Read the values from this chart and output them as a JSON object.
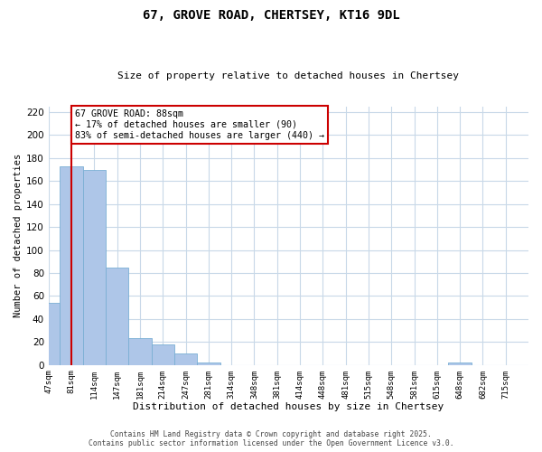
{
  "title": "67, GROVE ROAD, CHERTSEY, KT16 9DL",
  "subtitle": "Size of property relative to detached houses in Chertsey",
  "xlabel": "Distribution of detached houses by size in Chertsey",
  "ylabel": "Number of detached properties",
  "bar_heights": [
    54,
    173,
    170,
    85,
    23,
    18,
    10,
    2,
    0,
    0,
    0,
    0,
    0,
    0,
    0,
    0,
    0,
    0,
    2,
    0,
    0
  ],
  "bar_color": "#aec6e8",
  "bar_edge_color": "#7aafd4",
  "property_bin_index": 1,
  "property_line_color": "#cc0000",
  "annotation_box_color": "#cc0000",
  "annotation_text": "67 GROVE ROAD: 88sqm\n← 17% of detached houses are smaller (90)\n83% of semi-detached houses are larger (440) →",
  "ylim": [
    0,
    225
  ],
  "yticks": [
    0,
    20,
    40,
    60,
    80,
    100,
    120,
    140,
    160,
    180,
    200,
    220
  ],
  "tick_labels": [
    "47sqm",
    "81sqm",
    "114sqm",
    "147sqm",
    "181sqm",
    "214sqm",
    "247sqm",
    "281sqm",
    "314sqm",
    "348sqm",
    "381sqm",
    "414sqm",
    "448sqm",
    "481sqm",
    "515sqm",
    "548sqm",
    "581sqm",
    "615sqm",
    "648sqm",
    "682sqm",
    "715sqm"
  ],
  "footer_line1": "Contains HM Land Registry data © Crown copyright and database right 2025.",
  "footer_line2": "Contains public sector information licensed under the Open Government Licence v3.0.",
  "background_color": "#ffffff",
  "grid_color": "#c8d8e8",
  "figsize": [
    6.0,
    5.0
  ],
  "dpi": 100
}
